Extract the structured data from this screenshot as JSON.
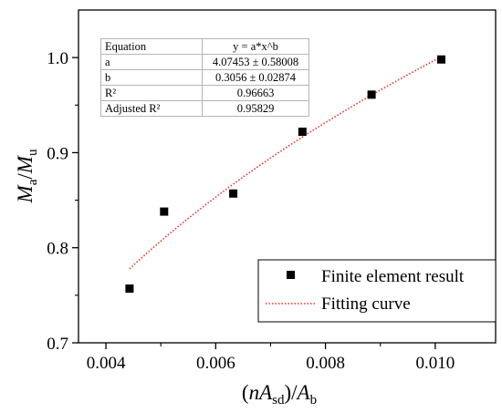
{
  "chart_data": {
    "type": "scatter",
    "xlabel": {
      "open": "(",
      "var": "nA",
      "sub": "sd",
      "close": ")/",
      "den": "A",
      "den_sub": "b"
    },
    "ylabel": {
      "num": "M",
      "num_sub": "a",
      "slash": "/",
      "den": "M",
      "den_sub": "u"
    },
    "xlim": [
      0.0035,
      0.0111
    ],
    "ylim": [
      0.7,
      1.05
    ],
    "x_ticks": [
      "0.004",
      "0.006",
      "0.008",
      "0.010"
    ],
    "y_ticks": [
      "0.7",
      "0.8",
      "0.9",
      "1.0"
    ],
    "series": [
      {
        "name": "Finite element result",
        "marker": "square",
        "color": "#000000",
        "points": [
          {
            "x": 0.00443,
            "y": 0.757
          },
          {
            "x": 0.00506,
            "y": 0.838
          },
          {
            "x": 0.00632,
            "y": 0.857
          },
          {
            "x": 0.00758,
            "y": 0.922
          },
          {
            "x": 0.00884,
            "y": 0.961
          },
          {
            "x": 0.01011,
            "y": 0.998
          }
        ]
      },
      {
        "name": "Fitting curve",
        "style": "dotted-line",
        "color": "#e8332a",
        "model": {
          "a": 4.07453,
          "b": 0.3056
        },
        "x_range": [
          0.00443,
          0.01011
        ]
      }
    ],
    "legend_position": "bottom-right",
    "fit_table": [
      [
        "Equation",
        "y = a*x^b"
      ],
      [
        "a",
        "4.07453 ± 0.58008"
      ],
      [
        "b",
        "0.3056 ± 0.02874"
      ],
      [
        "R²",
        "0.96663"
      ],
      [
        "Adjusted R²",
        "0.95829"
      ]
    ]
  }
}
